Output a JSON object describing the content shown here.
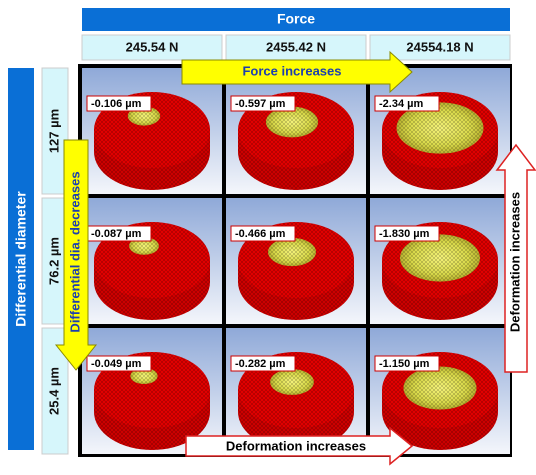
{
  "header": {
    "title": "Force",
    "columns": [
      "245.54 N",
      "2455.42 N",
      "24554.18 N"
    ]
  },
  "side": {
    "title": "Differential  diameter",
    "rows": [
      "127 µm",
      "76.2 µm",
      "25.4 µm"
    ]
  },
  "cells": [
    [
      "-0.106 µm",
      "-0.597 µm",
      "-2.34 µm"
    ],
    [
      "-0.087 µm",
      "-0.466 µm",
      "-1.830 µm"
    ],
    [
      "-0.049 µm",
      "-0.282 µm",
      "-1.150 µm"
    ]
  ],
  "arrows": {
    "force": "Force increases",
    "diameter": "Differential dia. decreases",
    "deformation_right": "Deformation increases",
    "deformation_bottom": "Deformation increases"
  }
}
